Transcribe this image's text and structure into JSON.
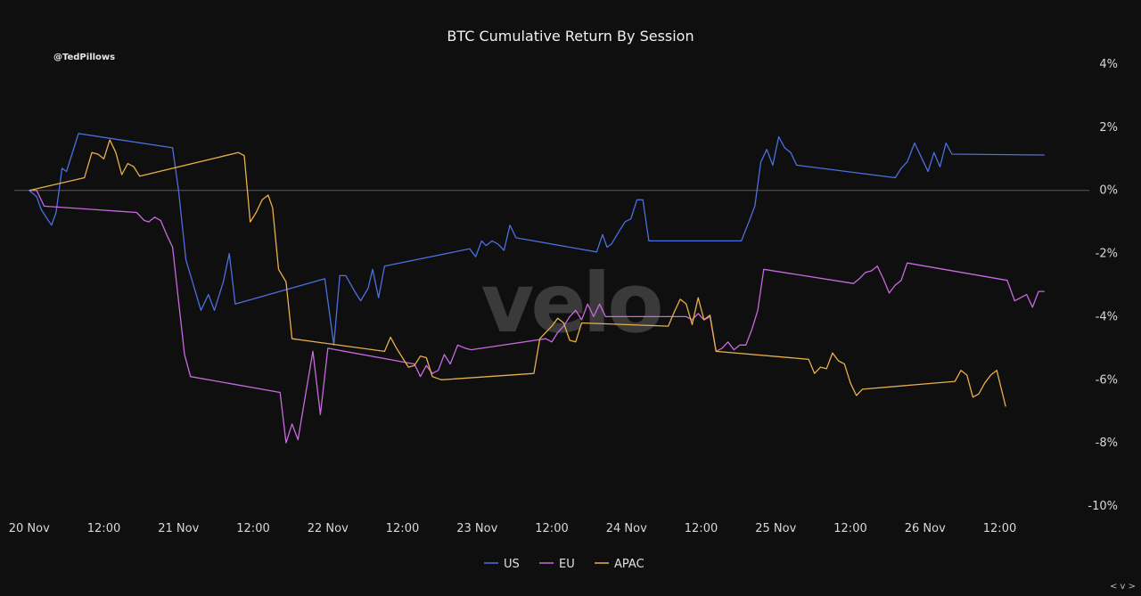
{
  "chart_data": {
    "type": "line",
    "title": "BTC Cumulative Return By Session",
    "handle": "@TedPillows",
    "watermark": "velo",
    "corner_controls": "< v >",
    "y_axis": {
      "position": "right",
      "ylim": [
        -10,
        4
      ],
      "ticks": [
        4,
        2,
        0,
        -2,
        -4,
        -6,
        -8,
        -10
      ],
      "tick_labels": [
        "4%",
        "2%",
        "0%",
        "-2%",
        "-4%",
        "-6%",
        "-8%",
        "-10%"
      ]
    },
    "x_axis": {
      "xlim": [
        -0.1,
        7.1
      ],
      "tick_positions": [
        0,
        0.5,
        1,
        1.5,
        2,
        2.5,
        3,
        3.5,
        4,
        4.5,
        5,
        5.5,
        6,
        6.5
      ],
      "tick_labels": [
        "20 Nov",
        "12:00",
        "21 Nov",
        "12:00",
        "22 Nov",
        "12:00",
        "23 Nov",
        "12:00",
        "24 Nov",
        "12:00",
        "25 Nov",
        "12:00",
        "26 Nov",
        "12:00"
      ]
    },
    "zero_line": true,
    "grid": false,
    "legend": {
      "placement": "bottom-center"
    },
    "series": [
      {
        "name": "US",
        "color": "#4c6fe0",
        "points": [
          [
            0,
            0
          ],
          [
            0.05,
            -0.2
          ],
          [
            0.08,
            -0.6
          ],
          [
            0.12,
            -0.9
          ],
          [
            0.15,
            -1.1
          ],
          [
            0.18,
            -0.7
          ],
          [
            0.22,
            0.7
          ],
          [
            0.25,
            0.6
          ],
          [
            0.33,
            1.8
          ],
          [
            0.96,
            1.35
          ],
          [
            1.0,
            0
          ],
          [
            1.05,
            -2.2
          ],
          [
            1.1,
            -3.0
          ],
          [
            1.15,
            -3.8
          ],
          [
            1.2,
            -3.3
          ],
          [
            1.24,
            -3.8
          ],
          [
            1.3,
            -2.9
          ],
          [
            1.34,
            -2.0
          ],
          [
            1.38,
            -3.6
          ],
          [
            1.98,
            -2.8
          ],
          [
            2.04,
            -4.9
          ],
          [
            2.08,
            -2.7
          ],
          [
            2.12,
            -2.7
          ],
          [
            2.18,
            -3.2
          ],
          [
            2.22,
            -3.5
          ],
          [
            2.27,
            -3.1
          ],
          [
            2.3,
            -2.5
          ],
          [
            2.34,
            -3.4
          ],
          [
            2.38,
            -2.4
          ],
          [
            2.95,
            -1.85
          ],
          [
            2.99,
            -2.1
          ],
          [
            3.03,
            -1.6
          ],
          [
            3.06,
            -1.75
          ],
          [
            3.1,
            -1.6
          ],
          [
            3.14,
            -1.7
          ],
          [
            3.18,
            -1.9
          ],
          [
            3.22,
            -1.1
          ],
          [
            3.26,
            -1.5
          ],
          [
            3.8,
            -1.95
          ],
          [
            3.84,
            -1.4
          ],
          [
            3.87,
            -1.8
          ],
          [
            3.9,
            -1.7
          ],
          [
            3.95,
            -1.3
          ],
          [
            3.99,
            -1.0
          ],
          [
            4.03,
            -0.9
          ],
          [
            4.07,
            -0.3
          ],
          [
            4.11,
            -0.3
          ],
          [
            4.15,
            -1.6
          ],
          [
            4.77,
            -1.6
          ],
          [
            4.82,
            -1.0
          ],
          [
            4.86,
            -0.5
          ],
          [
            4.9,
            0.9
          ],
          [
            4.94,
            1.3
          ],
          [
            4.98,
            0.8
          ],
          [
            5.02,
            1.7
          ],
          [
            5.06,
            1.35
          ],
          [
            5.1,
            1.2
          ],
          [
            5.14,
            0.8
          ],
          [
            5.8,
            0.4
          ],
          [
            5.84,
            0.7
          ],
          [
            5.88,
            0.9
          ],
          [
            5.93,
            1.5
          ],
          [
            5.98,
            1.0
          ],
          [
            6.02,
            0.6
          ],
          [
            6.06,
            1.2
          ],
          [
            6.1,
            0.75
          ],
          [
            6.14,
            1.5
          ],
          [
            6.18,
            1.15
          ],
          [
            6.8,
            1.12
          ]
        ]
      },
      {
        "name": "EU",
        "color": "#c86ae0",
        "points": [
          [
            0,
            0
          ],
          [
            0.05,
            0
          ],
          [
            0.1,
            -0.5
          ],
          [
            0.72,
            -0.7
          ],
          [
            0.77,
            -0.95
          ],
          [
            0.8,
            -1.0
          ],
          [
            0.84,
            -0.85
          ],
          [
            0.88,
            -0.95
          ],
          [
            0.92,
            -1.4
          ],
          [
            0.96,
            -1.8
          ],
          [
            1.0,
            -3.5
          ],
          [
            1.04,
            -5.2
          ],
          [
            1.08,
            -5.9
          ],
          [
            1.68,
            -6.4
          ],
          [
            1.72,
            -8.0
          ],
          [
            1.76,
            -7.4
          ],
          [
            1.8,
            -7.9
          ],
          [
            1.85,
            -6.5
          ],
          [
            1.9,
            -5.1
          ],
          [
            1.95,
            -7.1
          ],
          [
            2.0,
            -5.0
          ],
          [
            2.58,
            -5.5
          ],
          [
            2.62,
            -5.9
          ],
          [
            2.66,
            -5.55
          ],
          [
            2.7,
            -5.8
          ],
          [
            2.74,
            -5.7
          ],
          [
            2.78,
            -5.2
          ],
          [
            2.82,
            -5.5
          ],
          [
            2.87,
            -4.9
          ],
          [
            2.92,
            -5.0
          ],
          [
            2.96,
            -5.05
          ],
          [
            3.46,
            -4.7
          ],
          [
            3.5,
            -4.8
          ],
          [
            3.54,
            -4.5
          ],
          [
            3.58,
            -4.3
          ],
          [
            3.62,
            -4.0
          ],
          [
            3.66,
            -3.8
          ],
          [
            3.7,
            -4.1
          ],
          [
            3.74,
            -3.6
          ],
          [
            3.78,
            -4.0
          ],
          [
            3.82,
            -3.6
          ],
          [
            3.86,
            -4.0
          ],
          [
            4.4,
            -4.0
          ],
          [
            4.44,
            -4.1
          ],
          [
            4.48,
            -3.9
          ],
          [
            4.52,
            -4.1
          ],
          [
            4.56,
            -4.0
          ],
          [
            4.6,
            -5.1
          ],
          [
            4.64,
            -5.0
          ],
          [
            4.68,
            -4.8
          ],
          [
            4.72,
            -5.05
          ],
          [
            4.76,
            -4.9
          ],
          [
            4.8,
            -4.9
          ],
          [
            4.84,
            -4.4
          ],
          [
            4.88,
            -3.8
          ],
          [
            4.92,
            -2.5
          ],
          [
            5.52,
            -2.95
          ],
          [
            5.56,
            -2.8
          ],
          [
            5.6,
            -2.6
          ],
          [
            5.64,
            -2.55
          ],
          [
            5.68,
            -2.4
          ],
          [
            5.72,
            -2.8
          ],
          [
            5.76,
            -3.25
          ],
          [
            5.8,
            -3.0
          ],
          [
            5.84,
            -2.85
          ],
          [
            5.88,
            -2.3
          ],
          [
            6.55,
            -2.85
          ],
          [
            6.6,
            -3.5
          ],
          [
            6.64,
            -3.4
          ],
          [
            6.68,
            -3.3
          ],
          [
            6.72,
            -3.7
          ],
          [
            6.76,
            -3.2
          ],
          [
            6.8,
            -3.2
          ]
        ]
      },
      {
        "name": "APAC",
        "color": "#e6b04a",
        "points": [
          [
            0,
            0
          ],
          [
            0.37,
            0.4
          ],
          [
            0.42,
            1.2
          ],
          [
            0.46,
            1.15
          ],
          [
            0.5,
            1.0
          ],
          [
            0.54,
            1.6
          ],
          [
            0.58,
            1.2
          ],
          [
            0.62,
            0.5
          ],
          [
            0.66,
            0.85
          ],
          [
            0.7,
            0.75
          ],
          [
            0.74,
            0.45
          ],
          [
            1.4,
            1.2
          ],
          [
            1.44,
            1.1
          ],
          [
            1.48,
            -1.0
          ],
          [
            1.52,
            -0.7
          ],
          [
            1.56,
            -0.3
          ],
          [
            1.6,
            -0.15
          ],
          [
            1.63,
            -0.55
          ],
          [
            1.67,
            -2.5
          ],
          [
            1.72,
            -2.9
          ],
          [
            1.76,
            -4.7
          ],
          [
            2.38,
            -5.1
          ],
          [
            2.42,
            -4.65
          ],
          [
            2.46,
            -5.0
          ],
          [
            2.5,
            -5.3
          ],
          [
            2.54,
            -5.6
          ],
          [
            2.58,
            -5.55
          ],
          [
            2.62,
            -5.25
          ],
          [
            2.66,
            -5.3
          ],
          [
            2.7,
            -5.9
          ],
          [
            2.76,
            -6.0
          ],
          [
            3.38,
            -5.8
          ],
          [
            3.42,
            -4.7
          ],
          [
            3.46,
            -4.5
          ],
          [
            3.5,
            -4.3
          ],
          [
            3.54,
            -4.05
          ],
          [
            3.58,
            -4.2
          ],
          [
            3.62,
            -4.75
          ],
          [
            3.66,
            -4.8
          ],
          [
            3.7,
            -4.2
          ],
          [
            4.28,
            -4.3
          ],
          [
            4.32,
            -3.85
          ],
          [
            4.36,
            -3.45
          ],
          [
            4.4,
            -3.6
          ],
          [
            4.44,
            -4.25
          ],
          [
            4.48,
            -3.4
          ],
          [
            4.52,
            -4.1
          ],
          [
            4.56,
            -3.95
          ],
          [
            4.6,
            -5.1
          ],
          [
            5.22,
            -5.35
          ],
          [
            5.26,
            -5.8
          ],
          [
            5.3,
            -5.6
          ],
          [
            5.34,
            -5.65
          ],
          [
            5.38,
            -5.15
          ],
          [
            5.42,
            -5.4
          ],
          [
            5.46,
            -5.5
          ],
          [
            5.5,
            -6.1
          ],
          [
            5.54,
            -6.5
          ],
          [
            5.58,
            -6.3
          ],
          [
            6.2,
            -6.05
          ],
          [
            6.24,
            -5.7
          ],
          [
            6.28,
            -5.85
          ],
          [
            6.32,
            -6.55
          ],
          [
            6.36,
            -6.45
          ],
          [
            6.4,
            -6.1
          ],
          [
            6.44,
            -5.85
          ],
          [
            6.48,
            -5.7
          ],
          [
            6.54,
            -6.85
          ]
        ]
      }
    ]
  }
}
